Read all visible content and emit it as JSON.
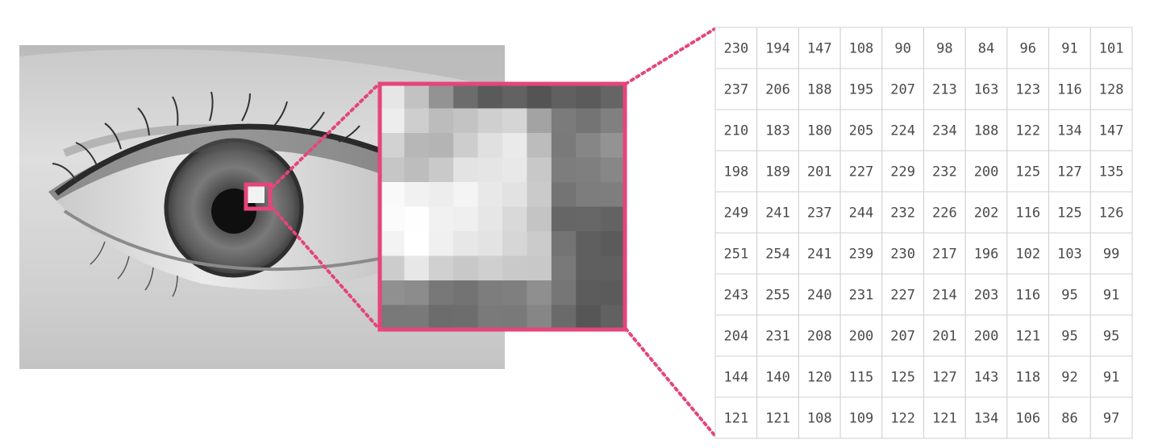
{
  "accent_color": "#e5457a",
  "photo": {
    "subject": "grayscale close-up photograph of a human eye",
    "highlighted_region": "small square on the iris near the catchlight"
  },
  "magnified_patch": {
    "description": "enlarged view of the highlighted region showing individual grayscale pixels"
  },
  "pixel_values": [
    [
      230,
      194,
      147,
      108,
      90,
      98,
      84,
      96,
      91,
      101
    ],
    [
      237,
      206,
      188,
      195,
      207,
      213,
      163,
      123,
      116,
      128
    ],
    [
      210,
      183,
      180,
      205,
      224,
      234,
      188,
      122,
      134,
      147
    ],
    [
      198,
      189,
      201,
      227,
      229,
      232,
      200,
      125,
      127,
      135
    ],
    [
      249,
      241,
      237,
      244,
      232,
      226,
      202,
      116,
      125,
      126
    ],
    [
      251,
      254,
      241,
      239,
      230,
      217,
      196,
      102,
      103,
      99
    ],
    [
      243,
      255,
      240,
      231,
      227,
      214,
      203,
      116,
      95,
      91
    ],
    [
      204,
      231,
      208,
      200,
      207,
      201,
      200,
      121,
      95,
      95
    ],
    [
      144,
      140,
      120,
      115,
      125,
      127,
      143,
      118,
      92,
      91
    ],
    [
      121,
      121,
      108,
      109,
      122,
      121,
      134,
      106,
      86,
      97
    ]
  ]
}
